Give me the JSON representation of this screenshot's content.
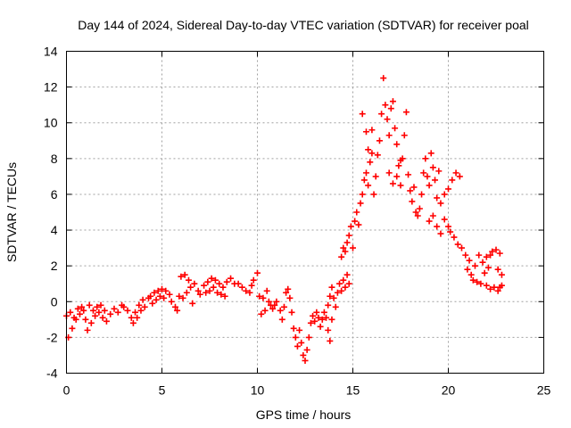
{
  "chart_data": {
    "type": "scatter",
    "title": "Day 144 of 2024, Sidereal Day-to-day VTEC variation (SDTVAR) for receiver poal",
    "xlabel": "GPS time / hours",
    "ylabel": "SDTVAR / TECUs",
    "xlim": [
      0,
      25
    ],
    "ylim": [
      -4,
      14
    ],
    "xticks": [
      0,
      5,
      10,
      15,
      20,
      25
    ],
    "yticks": [
      -4,
      -2,
      0,
      2,
      4,
      6,
      8,
      10,
      12,
      14
    ],
    "grid": true,
    "marker": "+",
    "color": "#ff0000",
    "series": [
      {
        "name": "SDTVAR",
        "points": [
          [
            0.0,
            -0.8
          ],
          [
            0.1,
            -2.0
          ],
          [
            0.3,
            -1.5
          ],
          [
            0.5,
            -1.0
          ],
          [
            0.7,
            -0.7
          ],
          [
            0.9,
            -0.5
          ],
          [
            0.2,
            -0.6
          ],
          [
            0.4,
            -0.9
          ],
          [
            0.6,
            -0.4
          ],
          [
            0.8,
            -0.3
          ],
          [
            1.0,
            -1.0
          ],
          [
            1.1,
            -1.6
          ],
          [
            1.3,
            -1.2
          ],
          [
            1.5,
            -0.8
          ],
          [
            1.7,
            -0.6
          ],
          [
            1.9,
            -0.9
          ],
          [
            1.2,
            -0.2
          ],
          [
            1.4,
            -0.5
          ],
          [
            1.6,
            -0.3
          ],
          [
            1.8,
            -0.2
          ],
          [
            2.0,
            -0.5
          ],
          [
            2.1,
            -1.1
          ],
          [
            2.3,
            -0.7
          ],
          [
            2.5,
            -0.4
          ],
          [
            2.7,
            -0.6
          ],
          [
            2.9,
            -0.2
          ],
          [
            3.0,
            -0.3
          ],
          [
            3.2,
            -0.5
          ],
          [
            3.4,
            -0.9
          ],
          [
            3.6,
            -0.6
          ],
          [
            3.8,
            -0.2
          ],
          [
            4.0,
            0.1
          ],
          [
            3.5,
            -1.2
          ],
          [
            3.7,
            -0.9
          ],
          [
            3.9,
            -0.5
          ],
          [
            4.1,
            -0.3
          ],
          [
            4.3,
            0.2
          ],
          [
            4.4,
            0.3
          ],
          [
            4.6,
            0.5
          ],
          [
            4.8,
            0.6
          ],
          [
            5.0,
            0.7
          ],
          [
            5.2,
            0.6
          ],
          [
            5.4,
            0.4
          ],
          [
            4.5,
            -0.1
          ],
          [
            4.7,
            0.1
          ],
          [
            4.9,
            0.3
          ],
          [
            5.1,
            0.2
          ],
          [
            5.5,
            0.0
          ],
          [
            5.7,
            -0.3
          ],
          [
            5.9,
            0.3
          ],
          [
            6.0,
            1.4
          ],
          [
            6.2,
            1.5
          ],
          [
            6.4,
            1.2
          ],
          [
            6.1,
            0.2
          ],
          [
            6.3,
            0.5
          ],
          [
            6.5,
            0.8
          ],
          [
            6.7,
            1.0
          ],
          [
            6.9,
            0.6
          ],
          [
            5.8,
            -0.5
          ],
          [
            6.6,
            -0.1
          ],
          [
            7.0,
            0.4
          ],
          [
            7.2,
            0.9
          ],
          [
            7.4,
            1.1
          ],
          [
            7.6,
            1.3
          ],
          [
            7.8,
            1.2
          ],
          [
            8.0,
            1.0
          ],
          [
            8.2,
            0.8
          ],
          [
            8.4,
            1.1
          ],
          [
            8.6,
            1.3
          ],
          [
            8.8,
            1.0
          ],
          [
            7.3,
            0.5
          ],
          [
            7.5,
            0.6
          ],
          [
            7.7,
            0.8
          ],
          [
            7.9,
            0.5
          ],
          [
            8.1,
            0.4
          ],
          [
            8.3,
            0.3
          ],
          [
            9.0,
            1.0
          ],
          [
            9.2,
            0.8
          ],
          [
            9.4,
            0.6
          ],
          [
            9.6,
            0.5
          ],
          [
            9.7,
            0.9
          ],
          [
            9.8,
            1.2
          ],
          [
            10.0,
            1.6
          ],
          [
            10.1,
            0.3
          ],
          [
            10.2,
            -0.7
          ],
          [
            10.3,
            0.2
          ],
          [
            10.5,
            0.6
          ],
          [
            10.7,
            -0.2
          ],
          [
            10.4,
            -0.5
          ],
          [
            10.6,
            0.0
          ],
          [
            10.8,
            -0.4
          ],
          [
            10.9,
            -0.2
          ],
          [
            11.0,
            0.0
          ],
          [
            11.2,
            -0.5
          ],
          [
            11.3,
            -1.0
          ],
          [
            11.4,
            -0.3
          ],
          [
            11.5,
            0.5
          ],
          [
            11.6,
            0.7
          ],
          [
            11.7,
            0.2
          ],
          [
            11.8,
            -0.6
          ],
          [
            11.9,
            -1.5
          ],
          [
            12.0,
            -2.0
          ],
          [
            12.1,
            -2.5
          ],
          [
            12.2,
            -1.6
          ],
          [
            12.3,
            -2.3
          ],
          [
            12.4,
            -3.0
          ],
          [
            12.5,
            -3.3
          ],
          [
            12.6,
            -2.7
          ],
          [
            12.7,
            -2.0
          ],
          [
            12.8,
            -1.2
          ],
          [
            12.9,
            -0.8
          ],
          [
            13.0,
            -1.1
          ],
          [
            13.1,
            -0.6
          ],
          [
            13.2,
            -0.9
          ],
          [
            13.3,
            -1.4
          ],
          [
            13.4,
            -1.0
          ],
          [
            13.5,
            -0.6
          ],
          [
            13.6,
            -0.9
          ],
          [
            13.7,
            -1.6
          ],
          [
            13.8,
            -2.2
          ],
          [
            13.9,
            -1.0
          ],
          [
            13.7,
            -0.2
          ],
          [
            13.8,
            0.3
          ],
          [
            13.9,
            0.8
          ],
          [
            14.0,
            0.2
          ],
          [
            14.1,
            -0.3
          ],
          [
            14.2,
            0.5
          ],
          [
            14.3,
            1.0
          ],
          [
            14.4,
            0.6
          ],
          [
            14.5,
            1.2
          ],
          [
            14.6,
            0.8
          ],
          [
            14.7,
            1.5
          ],
          [
            14.8,
            1.0
          ],
          [
            14.4,
            2.5
          ],
          [
            14.5,
            3.0
          ],
          [
            14.6,
            2.8
          ],
          [
            14.7,
            3.3
          ],
          [
            14.8,
            3.7
          ],
          [
            14.9,
            4.2
          ],
          [
            15.0,
            3.0
          ],
          [
            15.1,
            4.5
          ],
          [
            15.2,
            5.0
          ],
          [
            15.3,
            4.3
          ],
          [
            15.4,
            5.5
          ],
          [
            15.5,
            6.0
          ],
          [
            15.6,
            6.8
          ],
          [
            15.7,
            7.2
          ],
          [
            15.8,
            6.5
          ],
          [
            15.9,
            7.8
          ],
          [
            16.0,
            8.3
          ],
          [
            16.1,
            6.0
          ],
          [
            15.5,
            10.5
          ],
          [
            15.7,
            9.5
          ],
          [
            15.8,
            8.5
          ],
          [
            16.0,
            9.6
          ],
          [
            16.2,
            7.0
          ],
          [
            16.3,
            8.2
          ],
          [
            16.4,
            9.0
          ],
          [
            16.5,
            10.5
          ],
          [
            16.6,
            12.5
          ],
          [
            16.7,
            11.0
          ],
          [
            16.8,
            10.2
          ],
          [
            16.9,
            9.3
          ],
          [
            17.0,
            10.8
          ],
          [
            17.1,
            11.2
          ],
          [
            17.2,
            9.7
          ],
          [
            17.3,
            8.8
          ],
          [
            17.4,
            7.6
          ],
          [
            17.5,
            6.5
          ],
          [
            16.9,
            7.2
          ],
          [
            17.1,
            6.6
          ],
          [
            17.3,
            7.0
          ],
          [
            17.5,
            7.9
          ],
          [
            17.7,
            9.3
          ],
          [
            17.8,
            10.6
          ],
          [
            17.6,
            8.0
          ],
          [
            17.9,
            7.1
          ],
          [
            18.0,
            6.2
          ],
          [
            18.1,
            5.6
          ],
          [
            18.2,
            6.4
          ],
          [
            18.3,
            5.0
          ],
          [
            18.4,
            4.8
          ],
          [
            18.5,
            5.2
          ],
          [
            18.6,
            6.0
          ],
          [
            18.7,
            7.2
          ],
          [
            18.8,
            8.0
          ],
          [
            18.9,
            7.0
          ],
          [
            19.0,
            6.5
          ],
          [
            19.1,
            8.3
          ],
          [
            19.2,
            7.5
          ],
          [
            19.3,
            6.8
          ],
          [
            19.4,
            5.8
          ],
          [
            19.5,
            7.3
          ],
          [
            19.0,
            4.5
          ],
          [
            19.2,
            4.8
          ],
          [
            19.4,
            4.2
          ],
          [
            19.6,
            5.5
          ],
          [
            19.8,
            6.0
          ],
          [
            20.0,
            6.3
          ],
          [
            19.6,
            3.8
          ],
          [
            19.8,
            4.6
          ],
          [
            20.0,
            4.2
          ],
          [
            20.2,
            6.8
          ],
          [
            20.4,
            7.2
          ],
          [
            20.6,
            7.0
          ],
          [
            20.1,
            3.9
          ],
          [
            20.3,
            3.6
          ],
          [
            20.5,
            3.2
          ],
          [
            20.7,
            3.0
          ],
          [
            20.9,
            2.6
          ],
          [
            21.1,
            2.3
          ],
          [
            21.0,
            1.8
          ],
          [
            21.2,
            1.5
          ],
          [
            21.4,
            2.0
          ],
          [
            21.6,
            2.6
          ],
          [
            21.8,
            2.2
          ],
          [
            22.0,
            2.5
          ],
          [
            21.3,
            1.2
          ],
          [
            21.5,
            1.1
          ],
          [
            21.7,
            1.0
          ],
          [
            21.9,
            1.6
          ],
          [
            22.1,
            1.9
          ],
          [
            22.2,
            2.6
          ],
          [
            22.0,
            0.9
          ],
          [
            22.2,
            0.7
          ],
          [
            22.4,
            0.8
          ],
          [
            22.6,
            0.6
          ],
          [
            22.7,
            0.8
          ],
          [
            22.8,
            0.9
          ],
          [
            22.3,
            2.8
          ],
          [
            22.5,
            2.9
          ],
          [
            22.7,
            2.7
          ],
          [
            22.8,
            1.5
          ],
          [
            22.6,
            1.8
          ]
        ]
      }
    ]
  }
}
